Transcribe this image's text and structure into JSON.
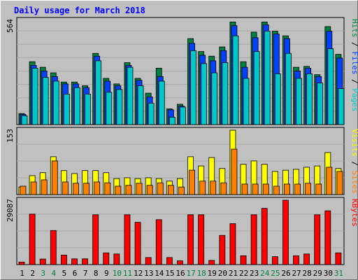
{
  "chart_data": {
    "type": "bar",
    "title": "Daily usage for March 2018",
    "days": [
      "1",
      "2",
      "3",
      "4",
      "5",
      "6",
      "7",
      "8",
      "9",
      "10",
      "11",
      "12",
      "13",
      "14",
      "15",
      "16",
      "17",
      "18",
      "19",
      "20",
      "21",
      "22",
      "23",
      "24",
      "25",
      "26",
      "27",
      "28",
      "29",
      "30",
      "31"
    ],
    "weekend_days": [
      "3",
      "4",
      "10",
      "11",
      "17",
      "18",
      "24",
      "25",
      "31"
    ],
    "panels": [
      {
        "id": "hits",
        "max_label": "564",
        "ymax": 564,
        "legend": [
          {
            "text": "Pages",
            "color": "#00c8c8"
          },
          {
            "text": "Files",
            "color": "#0040ff"
          },
          {
            "text": "Hits",
            "color": "#008040"
          }
        ],
        "separator": " / ",
        "series": [
          {
            "name": "Hits",
            "color": "#008040",
            "values": [
              60,
              340,
              310,
              280,
              230,
              230,
              210,
              385,
              250,
              220,
              335,
              250,
              170,
              305,
              85,
              110,
              465,
              395,
              370,
              420,
              555,
              340,
              500,
              555,
              505,
              480,
              310,
              315,
              270,
              530,
              380
            ]
          },
          {
            "name": "Files",
            "color": "#0040ff",
            "values": [
              55,
              320,
              290,
              260,
              220,
              220,
              200,
              370,
              235,
              210,
              320,
              240,
              150,
              260,
              80,
              100,
              440,
              375,
              345,
              400,
              535,
              310,
              470,
              540,
              490,
              465,
              290,
              305,
              260,
              505,
              360
            ]
          },
          {
            "name": "Pages",
            "color": "#00c8c8",
            "values": [
              48,
              305,
              255,
              235,
              165,
              200,
              165,
              345,
              175,
              190,
              310,
              210,
              115,
              235,
              40,
              95,
              400,
              330,
              280,
              335,
              480,
              250,
              395,
              505,
              275,
              385,
              250,
              275,
              225,
              410,
              195
            ]
          }
        ]
      },
      {
        "id": "visits",
        "max_label": "153",
        "ymax": 153,
        "legend": [
          {
            "text": "Sites",
            "color": "#ff8000"
          },
          {
            "text": "Visits",
            "color": "#ffff00"
          }
        ],
        "separator": " / ",
        "series": [
          {
            "name": "Visits",
            "color": "#ffff00",
            "values": [
              18,
              45,
              52,
              90,
              57,
              50,
              57,
              57,
              52,
              38,
              40,
              38,
              40,
              38,
              32,
              38,
              90,
              68,
              88,
              62,
              153,
              72,
              80,
              72,
              55,
              58,
              60,
              65,
              68,
              100,
              62
            ]
          },
          {
            "name": "Sites",
            "color": "#ff8000",
            "values": [
              20,
              30,
              35,
              80,
              30,
              27,
              27,
              30,
              28,
              20,
              22,
              27,
              22,
              28,
              22,
              18,
              58,
              32,
              32,
              28,
              108,
              25,
              25,
              25,
              20,
              25,
              25,
              27,
              25,
              65,
              55
            ]
          }
        ]
      },
      {
        "id": "kbytes",
        "max_label": "29087",
        "ymax": 29087,
        "legend": [
          {
            "text": "KBytes",
            "color": "#ff0000"
          }
        ],
        "separator": "",
        "series": [
          {
            "name": "KBytes",
            "color": "#ff0000",
            "values": [
              1150,
              22800,
              2500,
              15400,
              4300,
              2600,
              2600,
              22500,
              5300,
              4800,
              22500,
              19100,
              3200,
              20300,
              3200,
              1700,
              22500,
              22500,
              1900,
              13200,
              18500,
              4000,
              22500,
              25400,
              3600,
              29087,
              4000,
              4800,
              22500,
              24300,
              5300
            ]
          }
        ]
      }
    ]
  }
}
